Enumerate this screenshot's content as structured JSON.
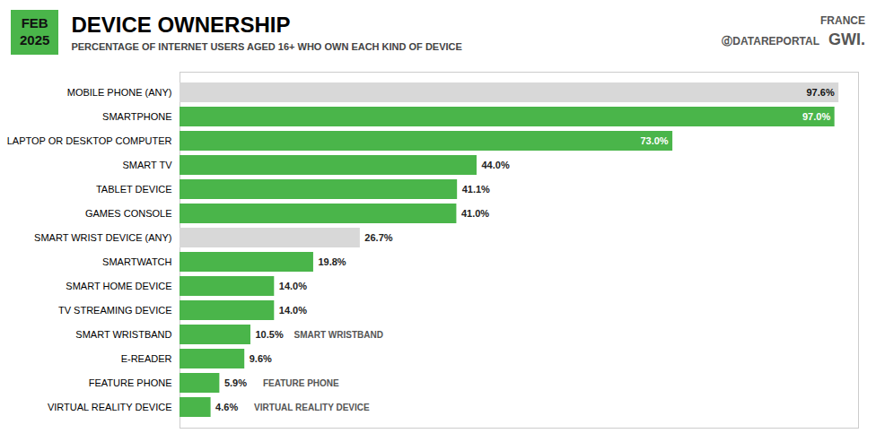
{
  "chart_data": {
    "type": "bar",
    "orientation": "horizontal",
    "title": "DEVICE OWNERSHIP",
    "subtitle": "PERCENTAGE OF INTERNET USERS AGED 16+ WHO OWN EACH KIND OF DEVICE",
    "annotations": [
      "FEB",
      "2025",
      "FRANCE",
      "ⓓDATAREPORTAL",
      "GWI.",
      "SMART WRISTBAND",
      "FEATURE PHONE",
      "VIRTUAL REALITY DEVICE"
    ],
    "categories": [
      "MOBILE PHONE (ANY)",
      "SMARTPHONE",
      "LAPTOP OR DESKTOP COMPUTER",
      "SMART TV",
      "TABLET DEVICE",
      "GAMES CONSOLE",
      "SMART WRIST DEVICE (ANY)",
      "SMARTWATCH",
      "SMART HOME DEVICE",
      "TV STREAMING DEVICE",
      "SMART WRISTBAND",
      "E-READER",
      "FEATURE PHONE",
      "VIRTUAL REALITY DEVICE"
    ],
    "values": [
      97.6,
      97.0,
      73.0,
      44.0,
      41.1,
      41.0,
      26.7,
      19.8,
      14.0,
      14.0,
      10.5,
      9.6,
      5.9,
      4.6
    ],
    "value_labels": [
      "97.6%",
      "97.0%",
      "73.0%",
      "44.0%",
      "41.1%",
      "41.0%",
      "26.7%",
      "19.8%",
      "14.0%",
      "14.0%",
      "10.5%",
      "9.6%",
      "5.9%",
      "4.6%"
    ],
    "colors": [
      "#d8d8d8",
      "#4ab54a",
      "#4ab54a",
      "#4ab54a",
      "#4ab54a",
      "#4ab54a",
      "#d8d8d8",
      "#4ab54a",
      "#4ab54a",
      "#4ab54a",
      "#4ab54a",
      "#4ab54a",
      "#4ab54a",
      "#4ab54a"
    ],
    "xlim": [
      0,
      100.5
    ],
    "data_labels": true,
    "tick_labels": "y",
    "grid": false
  }
}
